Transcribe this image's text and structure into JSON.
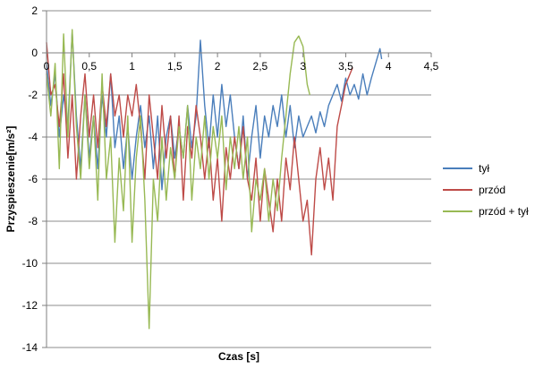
{
  "chart_data": {
    "type": "line",
    "xlabel": "Czas [s]",
    "ylabel": "Przyspieszenie[m/s²]",
    "xlim": [
      0,
      4.5
    ],
    "ylim": [
      -14,
      2
    ],
    "x_ticks": [
      "0",
      "0,5",
      "1",
      "1,5",
      "2",
      "2,5",
      "3",
      "3,5",
      "4",
      "4,5"
    ],
    "y_ticks": [
      "2",
      "0",
      "-2",
      "-4",
      "-6",
      "-8",
      "-10",
      "-12",
      "-14"
    ],
    "grid": true,
    "legend_position": "right",
    "series": [
      {
        "name": "tył",
        "color": "#4a7ebb",
        "points": [
          [
            0,
            -0.5
          ],
          [
            0.05,
            -2.5
          ],
          [
            0.1,
            -1
          ],
          [
            0.15,
            -4
          ],
          [
            0.2,
            -2
          ],
          [
            0.25,
            -3.5
          ],
          [
            0.3,
            1
          ],
          [
            0.35,
            -3
          ],
          [
            0.4,
            -5.5
          ],
          [
            0.45,
            -2
          ],
          [
            0.5,
            -5
          ],
          [
            0.55,
            -3
          ],
          [
            0.6,
            -5.5
          ],
          [
            0.65,
            -2
          ],
          [
            0.7,
            -4
          ],
          [
            0.75,
            -1
          ],
          [
            0.8,
            -4.5
          ],
          [
            0.85,
            -3
          ],
          [
            0.9,
            -5.5
          ],
          [
            0.95,
            -3.5
          ],
          [
            1.0,
            -6
          ],
          [
            1.05,
            -4
          ],
          [
            1.1,
            -2.5
          ],
          [
            1.15,
            -4.5
          ],
          [
            1.2,
            -3
          ],
          [
            1.25,
            -5.5
          ],
          [
            1.3,
            -3
          ],
          [
            1.35,
            -6.5
          ],
          [
            1.4,
            -4
          ],
          [
            1.45,
            -3
          ],
          [
            1.5,
            -5
          ],
          [
            1.55,
            -3.5
          ],
          [
            1.6,
            -5
          ],
          [
            1.65,
            -2.5
          ],
          [
            1.7,
            -4.5
          ],
          [
            1.75,
            -3
          ],
          [
            1.8,
            0.6
          ],
          [
            1.85,
            -2.5
          ],
          [
            1.9,
            -4.5
          ],
          [
            1.95,
            -2
          ],
          [
            2.0,
            -4
          ],
          [
            2.05,
            -1.5
          ],
          [
            2.1,
            -3.5
          ],
          [
            2.15,
            -2
          ],
          [
            2.2,
            -4
          ],
          [
            2.25,
            -5.5
          ],
          [
            2.3,
            -3
          ],
          [
            2.35,
            -6
          ],
          [
            2.4,
            -4
          ],
          [
            2.45,
            -2.5
          ],
          [
            2.5,
            -5
          ],
          [
            2.55,
            -3
          ],
          [
            2.6,
            -4
          ],
          [
            2.65,
            -2.5
          ],
          [
            2.7,
            -3.5
          ],
          [
            2.75,
            -2
          ],
          [
            2.8,
            -4
          ],
          [
            2.85,
            -2.5
          ],
          [
            2.9,
            -4.5
          ],
          [
            2.95,
            -3
          ],
          [
            3.0,
            -4
          ],
          [
            3.05,
            -3.5
          ],
          [
            3.1,
            -3
          ],
          [
            3.15,
            -3.8
          ],
          [
            3.2,
            -2.8
          ],
          [
            3.25,
            -3.5
          ],
          [
            3.3,
            -2.5
          ],
          [
            3.35,
            -2
          ],
          [
            3.4,
            -1.5
          ],
          [
            3.45,
            -2.3
          ],
          [
            3.5,
            -1.2
          ],
          [
            3.55,
            -2
          ],
          [
            3.6,
            -1.5
          ],
          [
            3.65,
            -2.2
          ],
          [
            3.7,
            -1
          ],
          [
            3.75,
            -2
          ],
          [
            3.8,
            -1.2
          ],
          [
            3.85,
            -0.5
          ],
          [
            3.9,
            0.2
          ],
          [
            3.92,
            -0.3
          ]
        ]
      },
      {
        "name": "przód",
        "color": "#be4b48",
        "points": [
          [
            0,
            0.5
          ],
          [
            0.05,
            -2
          ],
          [
            0.1,
            -1.5
          ],
          [
            0.15,
            -3.5
          ],
          [
            0.2,
            -1
          ],
          [
            0.25,
            -5
          ],
          [
            0.3,
            -2
          ],
          [
            0.35,
            -6
          ],
          [
            0.4,
            -3
          ],
          [
            0.45,
            -1
          ],
          [
            0.5,
            -4
          ],
          [
            0.55,
            -2
          ],
          [
            0.6,
            -4.5
          ],
          [
            0.65,
            -1.5
          ],
          [
            0.7,
            -3.5
          ],
          [
            0.75,
            -1
          ],
          [
            0.8,
            -3
          ],
          [
            0.85,
            -2
          ],
          [
            0.9,
            -4
          ],
          [
            0.95,
            -2
          ],
          [
            1.0,
            -3
          ],
          [
            1.05,
            -1.5
          ],
          [
            1.1,
            -3.5
          ],
          [
            1.15,
            -6
          ],
          [
            1.2,
            -2
          ],
          [
            1.25,
            -4
          ],
          [
            1.3,
            -6
          ],
          [
            1.35,
            -2.5
          ],
          [
            1.4,
            -5
          ],
          [
            1.45,
            -3
          ],
          [
            1.5,
            -6
          ],
          [
            1.55,
            -3
          ],
          [
            1.6,
            -7
          ],
          [
            1.65,
            -3.5
          ],
          [
            1.7,
            -5
          ],
          [
            1.75,
            -2.5
          ],
          [
            1.8,
            -4
          ],
          [
            1.85,
            -6
          ],
          [
            1.9,
            -4
          ],
          [
            1.95,
            -7
          ],
          [
            2.0,
            -5
          ],
          [
            2.05,
            -8
          ],
          [
            2.1,
            -4.5
          ],
          [
            2.15,
            -6
          ],
          [
            2.2,
            -4
          ],
          [
            2.25,
            -5.5
          ],
          [
            2.3,
            -3.5
          ],
          [
            2.35,
            -6
          ],
          [
            2.4,
            -7
          ],
          [
            2.45,
            -5
          ],
          [
            2.5,
            -8
          ],
          [
            2.55,
            -5.5
          ],
          [
            2.6,
            -7
          ],
          [
            2.65,
            -8.5
          ],
          [
            2.7,
            -6
          ],
          [
            2.75,
            -8
          ],
          [
            2.8,
            -5
          ],
          [
            2.85,
            -6.5
          ],
          [
            2.9,
            -4
          ],
          [
            2.95,
            -6
          ],
          [
            3.0,
            -8
          ],
          [
            3.05,
            -7
          ],
          [
            3.1,
            -9.6
          ],
          [
            3.15,
            -6
          ],
          [
            3.2,
            -4.5
          ],
          [
            3.25,
            -6.5
          ],
          [
            3.3,
            -5
          ],
          [
            3.35,
            -7
          ],
          [
            3.4,
            -3.5
          ],
          [
            3.45,
            -2.5
          ],
          [
            3.5,
            -1.5
          ],
          [
            3.55,
            -1
          ],
          [
            3.58,
            -0.7
          ]
        ]
      },
      {
        "name": "przód + tył",
        "color": "#98b954",
        "points": [
          [
            0,
            -1
          ],
          [
            0.05,
            -3
          ],
          [
            0.1,
            -0.5
          ],
          [
            0.15,
            -5.5
          ],
          [
            0.2,
            0.9
          ],
          [
            0.25,
            -4
          ],
          [
            0.3,
            1.1
          ],
          [
            0.35,
            -3.5
          ],
          [
            0.4,
            -6
          ],
          [
            0.45,
            -2
          ],
          [
            0.5,
            -5.5
          ],
          [
            0.55,
            -3
          ],
          [
            0.6,
            -7
          ],
          [
            0.65,
            -1
          ],
          [
            0.7,
            -6
          ],
          [
            0.75,
            -4
          ],
          [
            0.8,
            -9
          ],
          [
            0.85,
            -5
          ],
          [
            0.9,
            -7.5
          ],
          [
            0.95,
            -3
          ],
          [
            1.0,
            -9
          ],
          [
            1.05,
            -5
          ],
          [
            1.1,
            -3
          ],
          [
            1.15,
            -7
          ],
          [
            1.2,
            -13.1
          ],
          [
            1.25,
            -6
          ],
          [
            1.3,
            -8
          ],
          [
            1.35,
            -4
          ],
          [
            1.4,
            -7
          ],
          [
            1.45,
            -4.5
          ],
          [
            1.5,
            -6
          ],
          [
            1.55,
            -3.5
          ],
          [
            1.6,
            -5
          ],
          [
            1.65,
            -2.5
          ],
          [
            1.7,
            -7
          ],
          [
            1.75,
            -4
          ],
          [
            1.8,
            -5.5
          ],
          [
            1.85,
            -3
          ],
          [
            1.9,
            -6
          ],
          [
            1.95,
            -3.5
          ],
          [
            2.0,
            -5
          ],
          [
            2.05,
            -3
          ],
          [
            2.1,
            -6.5
          ],
          [
            2.15,
            -4
          ],
          [
            2.2,
            -5.5
          ],
          [
            2.25,
            -3.5
          ],
          [
            2.3,
            -6
          ],
          [
            2.35,
            -4
          ],
          [
            2.4,
            -8.5
          ],
          [
            2.45,
            -6
          ],
          [
            2.5,
            -7
          ],
          [
            2.55,
            -5.5
          ],
          [
            2.6,
            -8
          ],
          [
            2.65,
            -6
          ],
          [
            2.7,
            -7.5
          ],
          [
            2.75,
            -5
          ],
          [
            2.8,
            -3
          ],
          [
            2.85,
            -1
          ],
          [
            2.9,
            0.5
          ],
          [
            2.95,
            0.8
          ],
          [
            3.0,
            0.3
          ],
          [
            3.05,
            -1.5
          ],
          [
            3.08,
            -2
          ]
        ]
      }
    ]
  }
}
